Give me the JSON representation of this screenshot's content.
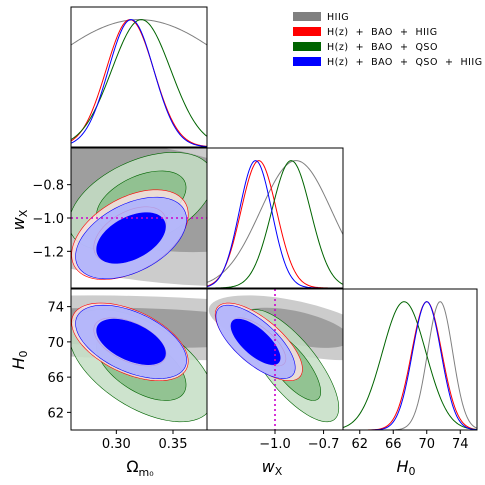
{
  "chart_data": {
    "type": "triangle-corner",
    "parameters": [
      {
        "key": "om",
        "label_main": "Ω",
        "label_sub": "m₀",
        "range": [
          0.26,
          0.38
        ],
        "ticks": [
          0.3,
          0.35
        ],
        "tick_labels": [
          "0.30",
          "0.35"
        ]
      },
      {
        "key": "w",
        "label_main": "w",
        "label_sub": "X",
        "range": [
          -1.42,
          -0.58
        ],
        "ticks": [
          -1.2,
          -1.0,
          -0.8
        ],
        "tick_labels": [
          "−1.2",
          "−1.0",
          "−0.8"
        ],
        "x_ticks": [
          -1.0,
          -0.7
        ],
        "x_tick_labels": [
          "−1.0",
          "−0.7"
        ]
      },
      {
        "key": "h0",
        "label_main": "H",
        "label_sub": "0",
        "range": [
          60,
          76
        ],
        "ticks": [
          62,
          66,
          70,
          74
        ],
        "tick_labels": [
          "62",
          "66",
          "70",
          "74"
        ]
      }
    ],
    "legend": [
      {
        "label": "HIIG",
        "color": "#808080"
      },
      {
        "label": "H(z)  +  BAO  +  HIIG",
        "color": "#ff0000"
      },
      {
        "label": "H(z)  +  BAO  +  QSO",
        "color": "#006400"
      },
      {
        "label": "H(z)  +  BAO  +  QSO  +  HIIG",
        "color": "#0000ff"
      }
    ],
    "reference_lines": {
      "w": -1.0,
      "color": "#cc00cc",
      "style": "dotted"
    },
    "series": [
      {
        "name": "HIIG",
        "color": "#808080",
        "mean": {
          "om": 0.32,
          "w": -0.87,
          "h0": 71.6
        },
        "sigma": {
          "om": 0.09,
          "w": 0.22,
          "h0": 1.5
        },
        "corr": {
          "om_w": -0.35,
          "om_h0": -0.2,
          "w_h0": -0.55
        },
        "fill": [
          "#999999",
          "#cccccc"
        ]
      },
      {
        "name": "H(z)  +  BAO  +  HIIG",
        "color": "#ff0000",
        "mean": {
          "om": 0.312,
          "w": -1.1,
          "h0": 70.0
        },
        "sigma": {
          "om": 0.021,
          "w": 0.11,
          "h0": 1.8
        },
        "corr": {
          "om_w": 0.45,
          "om_h0": -0.5,
          "w_h0": -0.7
        },
        "fill": [
          "#f4cccc",
          "#f9e0e0"
        ]
      },
      {
        "name": "H(z)  +  BAO  +  QSO",
        "color": "#006400",
        "mean": {
          "om": 0.322,
          "w": -0.9,
          "h0": 67.3
        },
        "sigma": {
          "om": 0.026,
          "w": 0.12,
          "h0": 2.6
        },
        "corr": {
          "om_w": 0.45,
          "om_h0": -0.55,
          "w_h0": -0.75
        },
        "fill": [
          "#8cbf8c",
          "#c4dec4"
        ]
      },
      {
        "name": "H(z)  +  BAO  +  QSO  +  HIIG",
        "color": "#0000ff",
        "mean": {
          "om": 0.313,
          "w": -1.12,
          "h0": 70.0
        },
        "sigma": {
          "om": 0.02,
          "w": 0.1,
          "h0": 1.7
        },
        "corr": {
          "om_w": 0.45,
          "om_h0": -0.5,
          "w_h0": -0.7
        },
        "fill": [
          "#0000ff",
          "#aab0ff"
        ]
      }
    ]
  }
}
